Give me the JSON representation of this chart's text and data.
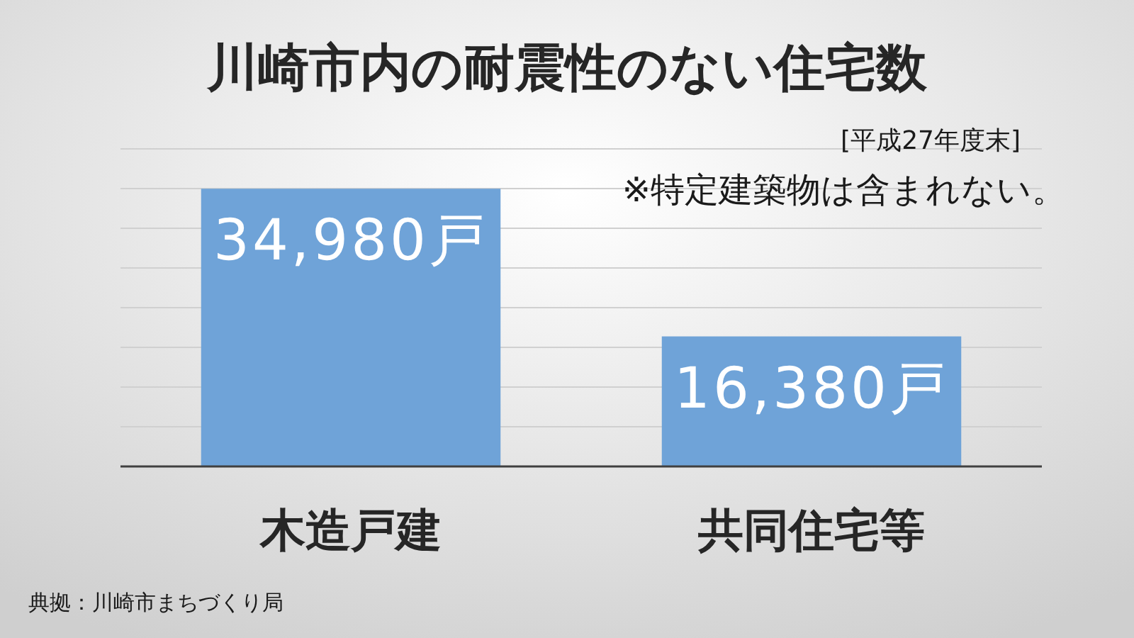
{
  "chart_data": {
    "type": "bar",
    "title": "川崎市内の耐震性のない住宅数",
    "categories": [
      "木造戸建",
      "共同住宅等"
    ],
    "values": [
      34980,
      16380
    ],
    "color": "#6fa3d8",
    "value_labels": [
      "34,980戸",
      "16,380戸"
    ],
    "ylim": [
      0,
      40000
    ],
    "yticks": [
      {
        "value": 0,
        "label": null
      },
      {
        "value": 5000,
        "label": null
      },
      {
        "value": 10000,
        "label": null
      },
      {
        "value": 15000,
        "label": null
      },
      {
        "value": 20000,
        "label": null
      },
      {
        "value": 25000,
        "label": null
      },
      {
        "value": 30000,
        "label": null
      },
      {
        "value": 35000,
        "label": null
      },
      {
        "value": 40000,
        "label": null
      }
    ],
    "grid": "y",
    "annotations": [
      "[平成27年度末]",
      "※特定建築物は含まれない。",
      "典拠：川崎市まちづくり局"
    ]
  }
}
